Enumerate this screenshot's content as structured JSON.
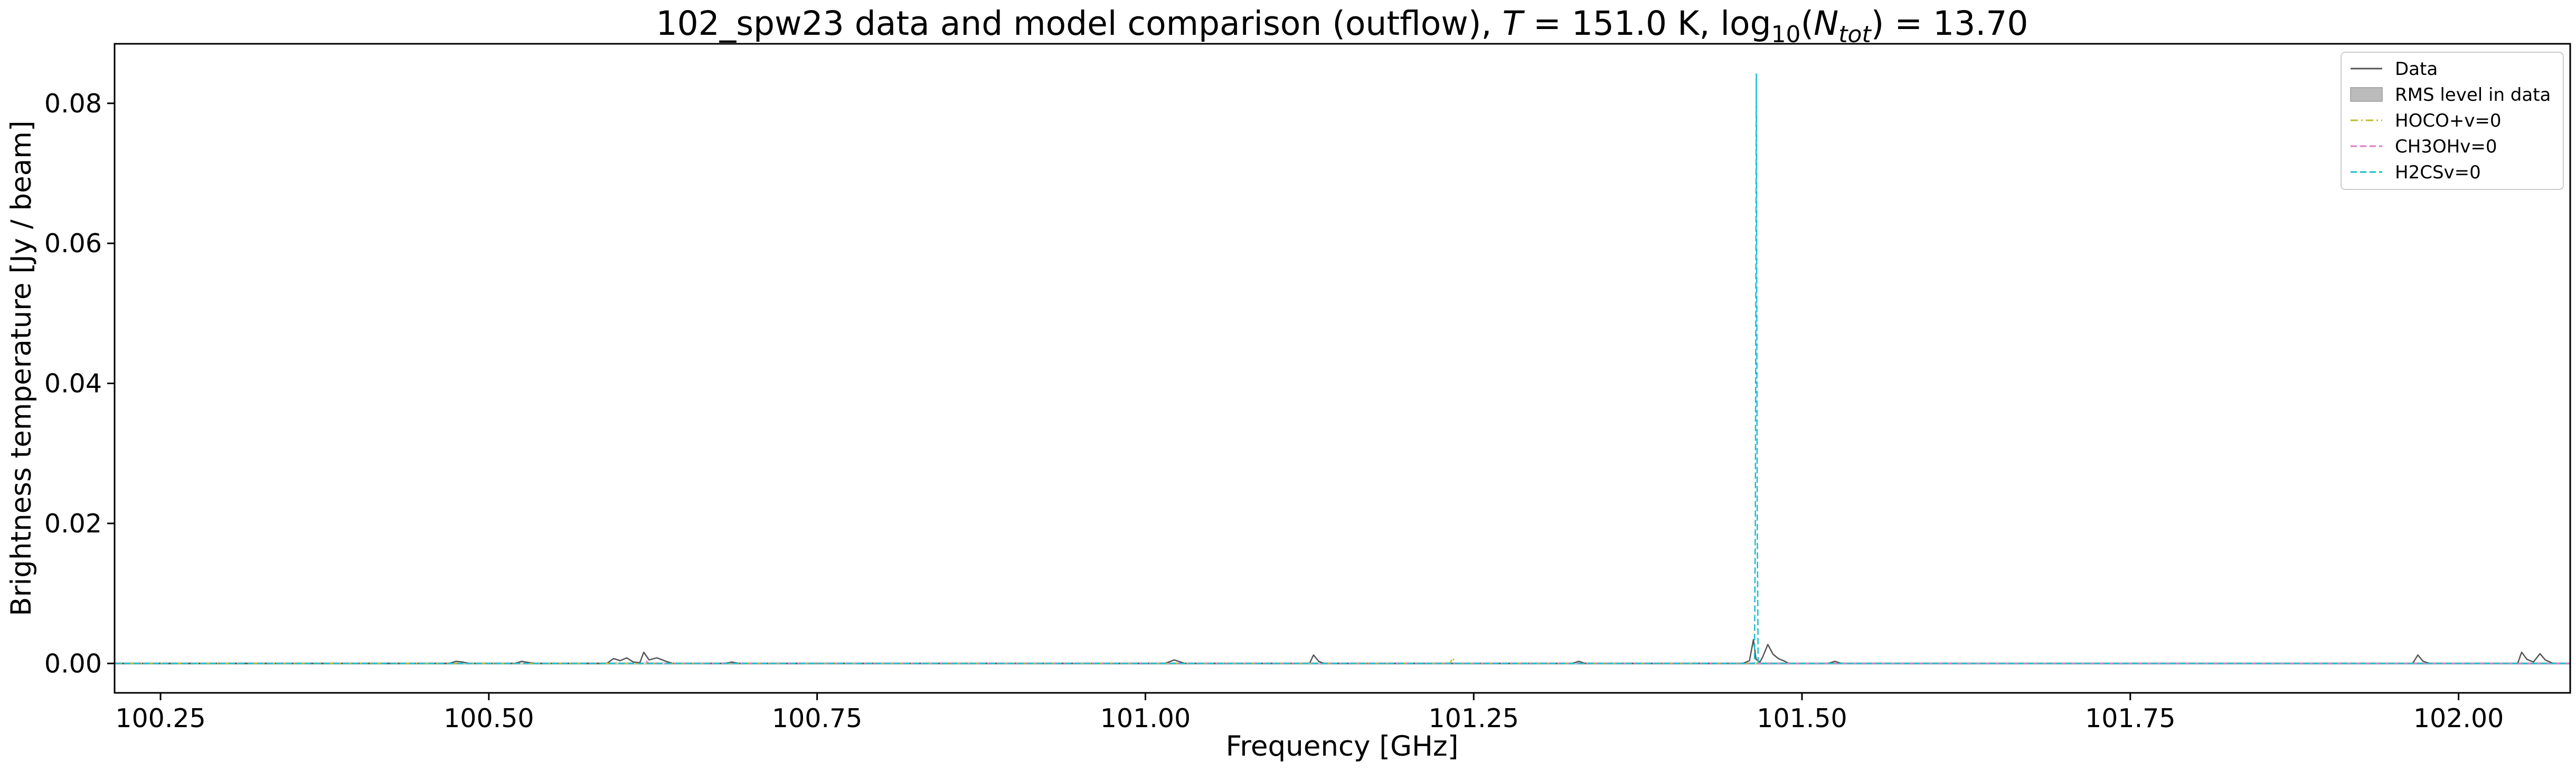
{
  "chart_data": {
    "type": "line",
    "title_parts": {
      "prefix": "102_spw23 data and model comparison (outflow), ",
      "t_symbol": "T",
      "t_value": " = 151.0 K, log",
      "log_sub": "10",
      "paren_open": "(",
      "n_symbol": "N",
      "n_sub": "tot",
      "suffix": ") = 13.70"
    },
    "xlabel": "Frequency [GHz]",
    "ylabel": "Brightness temperature [Jy / beam]",
    "xlim": [
      100.215,
      102.085
    ],
    "ylim": [
      -0.0042,
      0.0885
    ],
    "xticks": [
      100.25,
      100.5,
      100.75,
      101.0,
      101.25,
      101.5,
      101.75,
      102.0
    ],
    "xtick_labels": [
      "100.25",
      "100.50",
      "100.75",
      "101.00",
      "101.25",
      "101.50",
      "101.75",
      "102.00"
    ],
    "yticks": [
      0.0,
      0.02,
      0.04,
      0.06,
      0.08
    ],
    "ytick_labels": [
      "0.00",
      "0.02",
      "0.04",
      "0.06",
      "0.08"
    ],
    "grid": false,
    "legend_position": "top-right",
    "legend": [
      {
        "label": "Data",
        "style": "solid",
        "color": "#555555"
      },
      {
        "label": "RMS level in data",
        "style": "fill",
        "color": "#bbbbbb"
      },
      {
        "label": "HOCO+v=0",
        "style": "dashdot",
        "color": "#bcbd22"
      },
      {
        "label": "CH3OHv=0",
        "style": "dashed",
        "color": "#e377c2"
      },
      {
        "label": "H2CSv=0",
        "style": "dashed",
        "color": "#17becf"
      }
    ],
    "series": [
      {
        "name": "Data",
        "color": "#555555",
        "x": [
          100.215,
          100.47,
          100.475,
          100.48,
          100.485,
          100.52,
          100.525,
          100.535,
          100.59,
          100.595,
          100.6,
          100.605,
          100.61,
          100.615,
          100.618,
          100.622,
          100.628,
          100.635,
          100.64,
          100.68,
          100.685,
          100.69,
          101.015,
          101.022,
          101.03,
          101.125,
          101.128,
          101.132,
          101.136,
          101.2,
          101.325,
          101.33,
          101.335,
          101.455,
          101.46,
          101.463,
          101.465,
          101.468,
          101.47,
          101.474,
          101.478,
          101.482,
          101.487,
          101.49,
          101.52,
          101.525,
          101.53,
          101.965,
          101.969,
          101.973,
          101.978,
          102.045,
          102.048,
          102.052,
          102.057,
          102.062,
          102.066,
          102.072,
          102.085
        ],
        "y": [
          0.0,
          0.0,
          0.0003,
          0.0002,
          0.0,
          0.0,
          0.0003,
          0.0,
          0.0,
          0.0007,
          0.0004,
          0.0008,
          0.0002,
          0.0001,
          0.0016,
          0.0005,
          0.0008,
          0.0003,
          0.0,
          0.0,
          0.0002,
          0.0,
          0.0,
          0.0005,
          0.0,
          0.0,
          0.0012,
          0.0003,
          0.0,
          0.0,
          0.0,
          0.0003,
          0.0,
          0.0,
          0.0004,
          0.0034,
          0.0006,
          0.0002,
          0.0009,
          0.0027,
          0.0013,
          0.0007,
          0.0003,
          0.0,
          0.0,
          0.0003,
          0.0,
          0.0,
          0.0012,
          0.0003,
          0.0,
          0.0,
          0.0016,
          0.0006,
          0.0002,
          0.0014,
          0.0005,
          0.0,
          0.0
        ]
      },
      {
        "name": "HOCO+v=0",
        "color": "#bcbd22",
        "x": [
          100.215,
          101.232,
          101.234,
          101.236,
          102.085
        ],
        "y": [
          0.0,
          0.0,
          0.0008,
          0.0,
          0.0
        ]
      },
      {
        "name": "CH3OHv=0",
        "color": "#e377c2",
        "x": [
          100.215,
          100.618,
          100.62,
          100.622,
          102.085
        ],
        "y": [
          0.0,
          0.0,
          0.0003,
          0.0,
          0.0
        ]
      },
      {
        "name": "H2CSv=0",
        "color": "#17becf",
        "x": [
          100.215,
          101.4638,
          101.4645,
          101.4652,
          101.4659,
          101.4666,
          102.085
        ],
        "y": [
          0.0,
          0.0,
          0.021,
          0.0842,
          0.021,
          0.0,
          0.0
        ]
      }
    ],
    "rms_level": 0.0002
  }
}
